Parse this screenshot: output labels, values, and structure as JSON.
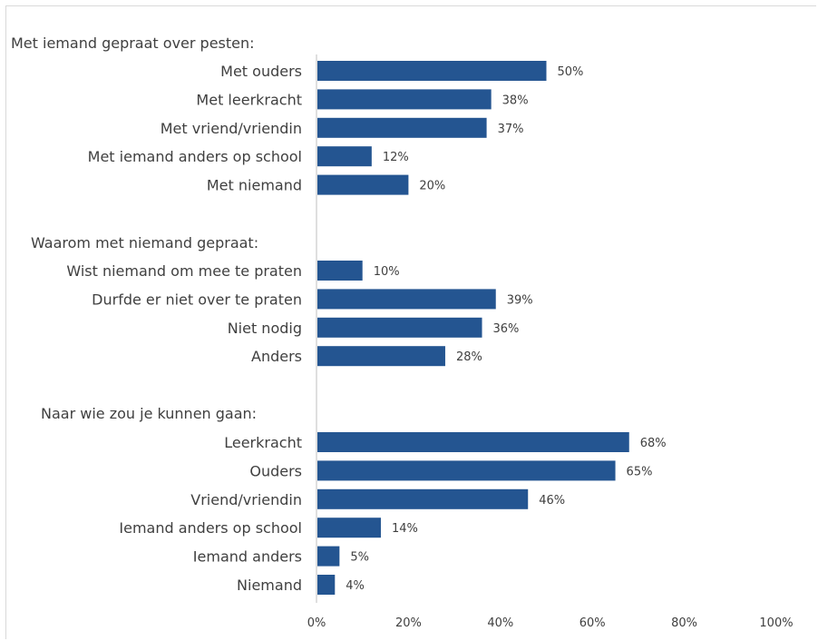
{
  "chart_data": {
    "type": "bar",
    "orientation": "horizontal",
    "bar_color": "#245591",
    "xlim": [
      0,
      100
    ],
    "x_ticks": [
      "0%",
      "20%",
      "40%",
      "60%",
      "80%",
      "100%"
    ],
    "grid": false,
    "groups": [
      {
        "heading": "Met iemand gepraat over pesten:",
        "categories": [
          "Met ouders",
          "Met leerkracht",
          "Met vriend/vriendin",
          "Met iemand anders op school",
          "Met niemand"
        ],
        "values": [
          50,
          38,
          37,
          12,
          20
        ],
        "labels": [
          "50%",
          "38%",
          "37%",
          "12%",
          "20%"
        ]
      },
      {
        "heading": "Waarom met niemand gepraat:",
        "categories": [
          "Wist niemand om mee te praten",
          "Durfde er niet over te praten",
          "Niet nodig",
          "Anders"
        ],
        "values": [
          10,
          39,
          36,
          28
        ],
        "labels": [
          "10%",
          "39%",
          "36%",
          "28%"
        ]
      },
      {
        "heading": "Naar wie zou je kunnen gaan:",
        "categories": [
          "Leerkracht",
          "Ouders",
          "Vriend/vriendin",
          "Iemand anders op school",
          "Iemand anders",
          "Niemand"
        ],
        "values": [
          68,
          65,
          46,
          14,
          5,
          4
        ],
        "labels": [
          "68%",
          "65%",
          "46%",
          "14%",
          "5%",
          "4%"
        ]
      }
    ]
  }
}
